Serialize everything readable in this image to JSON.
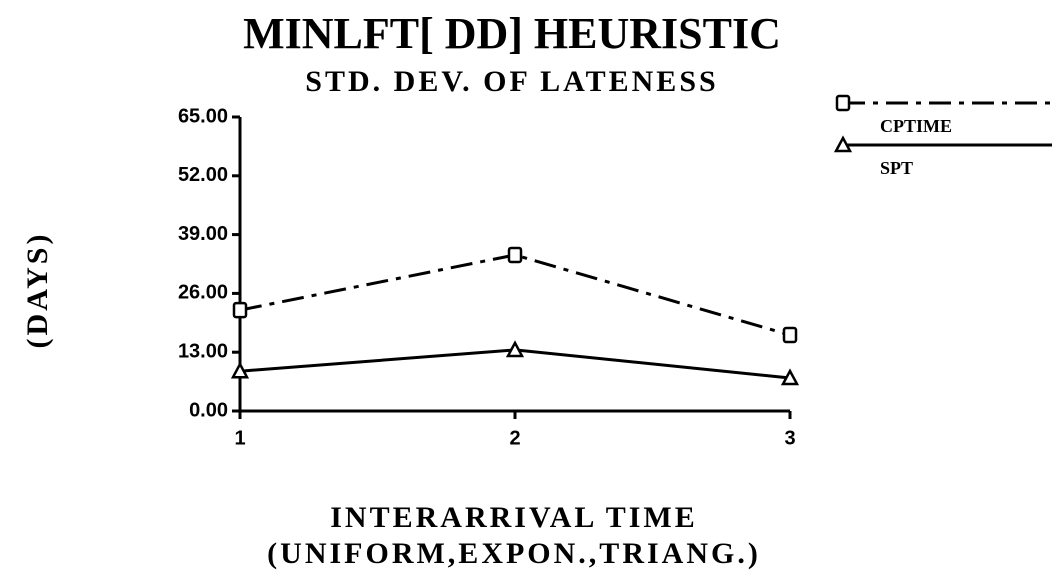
{
  "chart_data": {
    "type": "line",
    "title": "MINLFT[ DD]  HEURISTIC",
    "subtitle": "STD. DEV. OF LATENESS",
    "ylabel": "(DAYS)",
    "xlabel": [
      "INTERARRIVAL TIME",
      "(UNIFORM,EXPON.,TRIANG.)"
    ],
    "x": [
      1,
      2,
      3
    ],
    "xlim": [
      1,
      3
    ],
    "xticks": [
      1,
      2,
      3
    ],
    "ylim": [
      0,
      65
    ],
    "yticks": [
      {
        "value": 0,
        "label": "0.00"
      },
      {
        "value": 13,
        "label": "13.00"
      },
      {
        "value": 26,
        "label": "26.00"
      },
      {
        "value": 39,
        "label": "39.00"
      },
      {
        "value": 52,
        "label": "52.00"
      },
      {
        "value": 65,
        "label": "65.00"
      }
    ],
    "series": [
      {
        "name": "CPTIME",
        "color": "#000000",
        "linestyle": "dashdot",
        "marker": "square",
        "values": [
          22.3,
          34.5,
          16.8
        ]
      },
      {
        "name": "SPT",
        "color": "#000000",
        "linestyle": "solid",
        "marker": "triangle",
        "values": [
          8.8,
          13.5,
          7.3
        ]
      }
    ]
  }
}
